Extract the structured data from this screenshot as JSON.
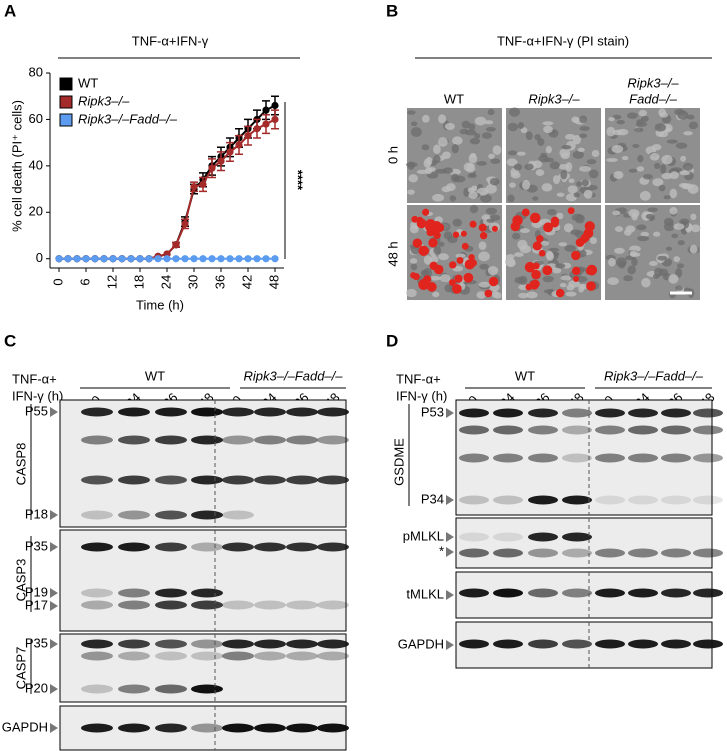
{
  "chart_data": {
    "type": "line",
    "panel_label": "A",
    "title": "TNF-α+IFN-γ",
    "x_label": "Time (h)",
    "y_label": "% cell death (PI⁺ cells)",
    "x": [
      0,
      2,
      4,
      6,
      8,
      10,
      12,
      14,
      16,
      18,
      20,
      22,
      24,
      26,
      28,
      30,
      32,
      34,
      36,
      38,
      40,
      42,
      44,
      46,
      48
    ],
    "series": [
      {
        "name": "WT",
        "color": "#000000",
        "values": [
          0,
          0,
          0,
          0,
          0,
          0,
          0,
          0,
          0,
          0,
          0,
          1,
          2,
          6,
          16,
          30,
          34,
          40,
          44,
          48,
          52,
          56,
          60,
          64,
          66
        ],
        "errors": [
          0,
          0,
          0,
          0,
          0,
          0,
          0,
          0,
          0,
          0,
          0,
          0,
          0,
          1,
          2,
          2,
          3,
          4,
          4,
          4,
          4,
          4,
          4,
          4,
          4
        ]
      },
      {
        "name": "Ripk3–/–",
        "color": "#a52a2a",
        "values": [
          0,
          0,
          0,
          0,
          0,
          0,
          0,
          0,
          0,
          0,
          0,
          1,
          2,
          6,
          15,
          31,
          32,
          39,
          42,
          46,
          49,
          53,
          56,
          58,
          60
        ],
        "errors": [
          0,
          0,
          0,
          0,
          0,
          0,
          0,
          0,
          0,
          0,
          0,
          0,
          0,
          1,
          2,
          2,
          3,
          4,
          4,
          4,
          4,
          4,
          4,
          4,
          4
        ]
      },
      {
        "name": "Ripk3–/–Fadd–/–",
        "color": "#5b9bf0",
        "values": [
          0,
          0,
          0,
          0,
          0,
          0,
          0,
          0,
          0,
          0,
          0,
          0,
          0,
          0,
          0,
          0,
          0,
          0,
          0,
          0,
          0,
          0,
          0,
          0,
          0
        ],
        "errors": [
          0,
          0,
          0,
          0,
          0,
          0,
          0,
          0,
          0,
          0,
          0,
          0,
          0,
          0,
          0,
          0,
          0,
          0,
          0,
          0,
          0,
          0,
          0,
          0,
          0
        ]
      }
    ],
    "xlim": [
      -2,
      50
    ],
    "xticks": [
      0,
      6,
      12,
      18,
      24,
      30,
      36,
      42,
      48
    ],
    "ylim": [
      -4,
      80
    ],
    "yticks": [
      0,
      20,
      40,
      60,
      80
    ],
    "annotation": "****",
    "legend": "upper left"
  },
  "panel_b": {
    "label": "B",
    "title": "TNF-α+IFN-γ (PI stain)",
    "columns": [
      "WT",
      "Ripk3–/–",
      "Ripk3–/–",
      "Fadd–/–"
    ],
    "rows": [
      "0 h",
      "48 h"
    ]
  },
  "panel_c": {
    "label": "C",
    "treatment": [
      "TNF-α+",
      "IFN-γ (h)"
    ],
    "groups": [
      "WT",
      "Ripk3–/–Fadd–/–"
    ],
    "lanes": [
      0,
      24,
      36,
      48,
      0,
      24,
      36,
      48
    ],
    "blots": [
      {
        "name": "CASP8",
        "bands": [
          "P55",
          "P18"
        ]
      },
      {
        "name": "CASP3",
        "bands": [
          "P35",
          "P19",
          "P17"
        ]
      },
      {
        "name": "CASP7",
        "bands": [
          "P35",
          "P20"
        ]
      },
      {
        "name": "GAPDH"
      }
    ]
  },
  "panel_d": {
    "label": "D",
    "treatment": [
      "TNF-α+",
      "IFN-γ (h)"
    ],
    "groups": [
      "WT",
      "Ripk3–/–Fadd–/–"
    ],
    "lanes": [
      0,
      24,
      36,
      48,
      0,
      24,
      36,
      48
    ],
    "blots": [
      {
        "name": "GSDME",
        "bands": [
          "P53",
          "P34"
        ]
      },
      {
        "name": "pMLKL",
        "bands": [
          "*"
        ]
      },
      {
        "name": "tMLKL"
      },
      {
        "name": "GAPDH"
      }
    ]
  }
}
